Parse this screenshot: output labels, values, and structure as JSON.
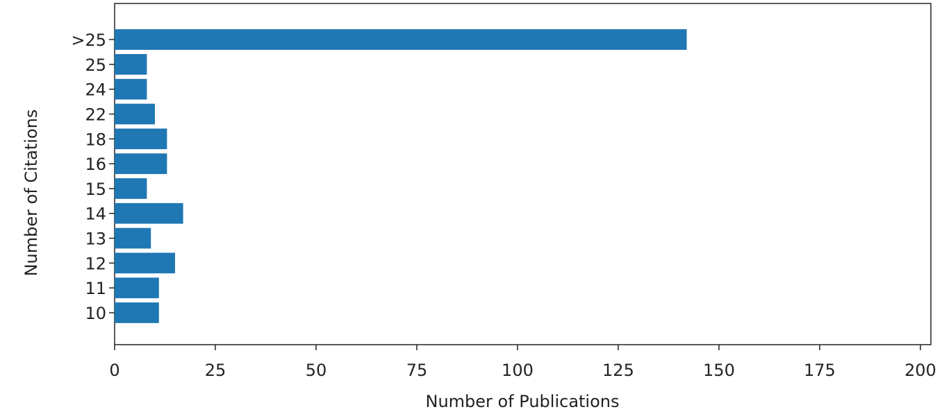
{
  "chart_data": {
    "type": "barh",
    "x_label": "Number of Publications",
    "y_label": "Number of Citations",
    "categories": [
      "10",
      "11",
      "12",
      "13",
      "14",
      "15",
      "16",
      "18",
      "22",
      "24",
      "25",
      ">25"
    ],
    "values": [
      11,
      11,
      15,
      9,
      17,
      8,
      13,
      13,
      10,
      8,
      8,
      142
    ],
    "color": "#1f77b4",
    "xlim": [
      0,
      202.6
    ],
    "xticks": [
      0,
      25,
      50,
      75,
      100,
      125,
      150,
      175,
      200
    ],
    "grid": false
  }
}
